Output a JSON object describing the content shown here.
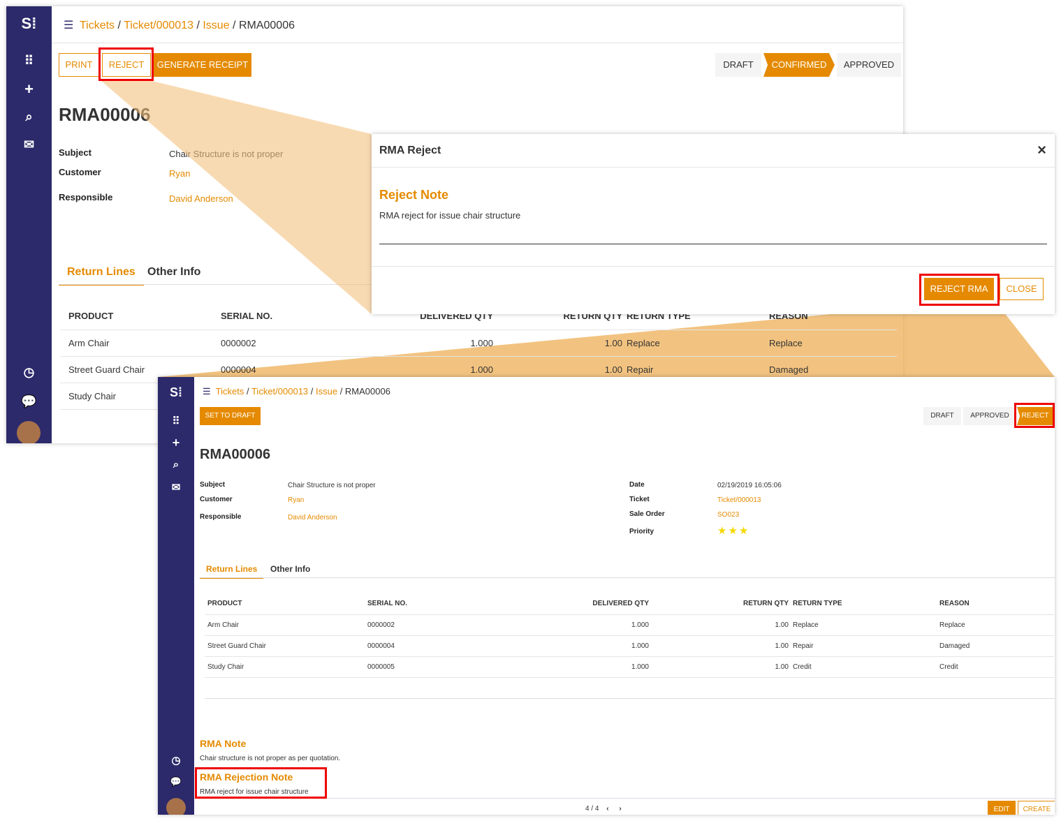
{
  "colors": {
    "accent": "#e58a00",
    "sidebar": "#2c2a6b",
    "highlight": "#e00000"
  },
  "breadcrumb": [
    "Tickets",
    "Ticket/000013",
    "Issue",
    "RMA00006"
  ],
  "top": {
    "buttons": {
      "print": "PRINT",
      "reject": "REJECT",
      "generate": "GENERATE RECEIPT"
    },
    "stages": [
      "DRAFT",
      "CONFIRMED",
      "APPROVED"
    ],
    "active_stage": "CONFIRMED",
    "title": "RMA00006",
    "fields": {
      "subject_l": "Subject",
      "subject": "Chair Structure is not proper",
      "customer_l": "Customer",
      "customer": "Ryan",
      "responsible_l": "Responsible",
      "responsible": "David Anderson"
    },
    "tabs": [
      "Return Lines",
      "Other Info"
    ],
    "columns": [
      "PRODUCT",
      "SERIAL NO.",
      "DELIVERED QTY",
      "RETURN QTY",
      "RETURN TYPE",
      "REASON"
    ],
    "rows": [
      [
        "Arm Chair",
        "0000002",
        "1.000",
        "1.00",
        "Replace",
        "Replace"
      ],
      [
        "Street Guard Chair",
        "0000004",
        "1.000",
        "1.00",
        "Repair",
        "Damaged"
      ],
      [
        "Study Chair",
        "",
        "",
        "",
        "",
        ""
      ]
    ]
  },
  "modal": {
    "title": "RMA Reject",
    "close": "×",
    "section": "Reject Note",
    "note": "RMA reject for issue chair structure",
    "reject_btn": "REJECT RMA",
    "close_btn": "CLOSE"
  },
  "bottom": {
    "set_draft": "SET TO DRAFT",
    "stages": [
      "DRAFT",
      "APPROVED",
      "REJECT"
    ],
    "active_stage": "REJECT",
    "title": "RMA00006",
    "left": {
      "subject_l": "Subject",
      "subject": "Chair Structure is not proper",
      "customer_l": "Customer",
      "customer": "Ryan",
      "responsible_l": "Responsible",
      "responsible": "David Anderson"
    },
    "right": {
      "date_l": "Date",
      "date": "02/19/2019 16:05:06",
      "ticket_l": "Ticket",
      "ticket": "Ticket/000013",
      "so_l": "Sale Order",
      "so": "SO023",
      "priority_l": "Priority",
      "priority": 3
    },
    "tabs": [
      "Return Lines",
      "Other Info"
    ],
    "columns": [
      "PRODUCT",
      "SERIAL NO.",
      "DELIVERED QTY",
      "RETURN QTY",
      "RETURN TYPE",
      "REASON"
    ],
    "rows": [
      [
        "Arm Chair",
        "0000002",
        "1.000",
        "1.00",
        "Replace",
        "Replace"
      ],
      [
        "Street Guard Chair",
        "0000004",
        "1.000",
        "1.00",
        "Repair",
        "Damaged"
      ],
      [
        "Study Chair",
        "0000005",
        "1.000",
        "1.00",
        "Credit",
        "Credit"
      ]
    ],
    "rma_note_title": "RMA Note",
    "rma_note": "Chair structure is not proper as per quotation.",
    "rejection_title": "RMA Rejection Note",
    "rejection": "RMA reject for issue chair structure",
    "pager": "4 / 4",
    "edit": "EDIT",
    "create": "CREATE"
  }
}
